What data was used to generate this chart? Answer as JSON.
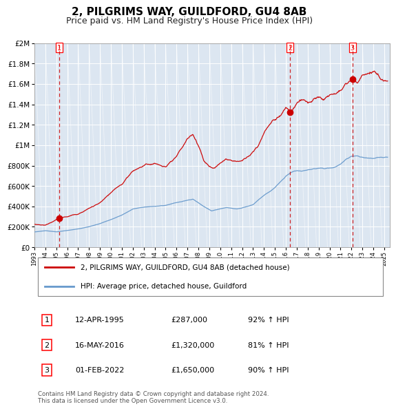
{
  "title": "2, PILGRIMS WAY, GUILDFORD, GU4 8AB",
  "subtitle": "Price paid vs. HM Land Registry's House Price Index (HPI)",
  "title_fontsize": 11,
  "subtitle_fontsize": 9,
  "bg_color": "#dce6f1",
  "red_line_color": "#cc0000",
  "blue_line_color": "#6699cc",
  "dashed_vline_color": "#cc0000",
  "ylim": [
    0,
    2000000
  ],
  "ytick_values": [
    0,
    200000,
    400000,
    600000,
    800000,
    1000000,
    1200000,
    1400000,
    1600000,
    1800000,
    2000000
  ],
  "sale1_date": 1995.28,
  "sale1_price": 287000,
  "sale2_date": 2016.37,
  "sale2_price": 1320000,
  "sale3_date": 2022.08,
  "sale3_price": 1650000,
  "legend_line1": "2, PILGRIMS WAY, GUILDFORD, GU4 8AB (detached house)",
  "legend_line2": "HPI: Average price, detached house, Guildford",
  "table_rows": [
    [
      "1",
      "12-APR-1995",
      "£287,000",
      "92% ↑ HPI"
    ],
    [
      "2",
      "16-MAY-2016",
      "£1,320,000",
      "81% ↑ HPI"
    ],
    [
      "3",
      "01-FEB-2022",
      "£1,650,000",
      "90% ↑ HPI"
    ]
  ],
  "footnote": "Contains HM Land Registry data © Crown copyright and database right 2024.\nThis data is licensed under the Open Government Licence v3.0."
}
